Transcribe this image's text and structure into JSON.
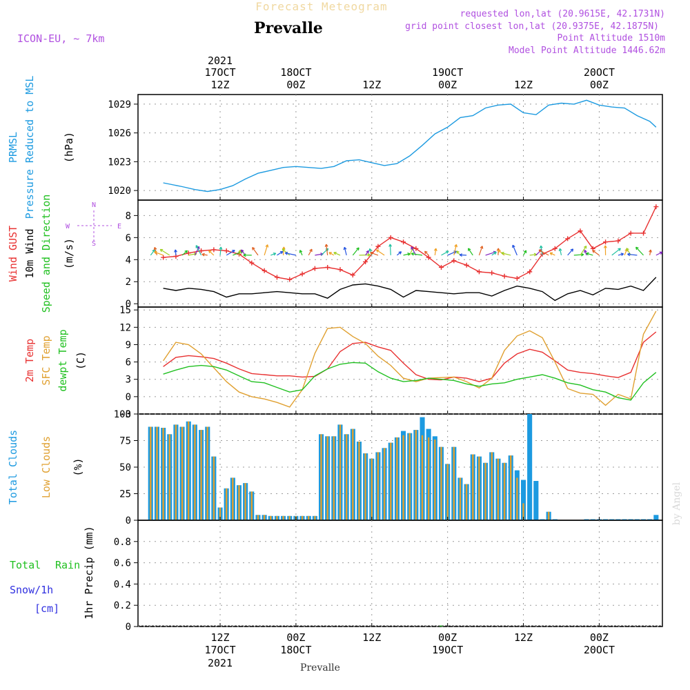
{
  "header": {
    "forecast_title": "Forecast Meteogram",
    "place": "Prevalle",
    "model": "ICON-EU, ~ 7km",
    "requested": "requested lon,lat (20.9615E, 42.1731N)",
    "grid_point": "grid point closest lon,lat (20.9375E, 42.1875N)",
    "point_altitude": "Point Altitude 1510m",
    "model_altitude": "Model Point Altitude 1446.62m"
  },
  "footer": {
    "place": "Prevalle",
    "watermark": "by Angel"
  },
  "time_axis": {
    "top_year": "2021",
    "ticks": [
      {
        "hour": 12,
        "l1": "17OCT",
        "l2": "12Z"
      },
      {
        "hour": 24,
        "l1": "18OCT",
        "l2": "00Z"
      },
      {
        "hour": 36,
        "l1": "",
        "l2": "12Z"
      },
      {
        "hour": 48,
        "l1": "19OCT",
        "l2": "00Z"
      },
      {
        "hour": 60,
        "l1": "",
        "l2": "12Z"
      },
      {
        "hour": 72,
        "l1": "20OCT",
        "l2": "00Z"
      }
    ],
    "bottom": [
      {
        "hour": 12,
        "l1": "12Z",
        "l2": "17OCT",
        "l3": "2021"
      },
      {
        "hour": 24,
        "l1": "00Z",
        "l2": "18OCT",
        "l3": ""
      },
      {
        "hour": 36,
        "l1": "12Z",
        "l2": "",
        "l3": ""
      },
      {
        "hour": 48,
        "l1": "00Z",
        "l2": "19OCT",
        "l3": ""
      },
      {
        "hour": 60,
        "l1": "12Z",
        "l2": "",
        "l3": ""
      },
      {
        "hour": 72,
        "l1": "00Z",
        "l2": "20OCT",
        "l3": ""
      }
    ]
  },
  "panels": {
    "pressure": {
      "labels": [
        {
          "text": "PRMSL",
          "color": "#1c9ae0"
        },
        {
          "text": "Pressure Reduced to MSL",
          "color": "#1c9ae0"
        },
        {
          "text": "(hPa)",
          "color": "#000000"
        }
      ],
      "ticks": [
        "1020",
        "1023",
        "1026",
        "1029"
      ]
    },
    "wind": {
      "labels": [
        {
          "text": "Wind GUST",
          "color": "#e83030"
        },
        {
          "text": "10m Wind",
          "color": "#000000"
        },
        {
          "text": "Speed and Direction",
          "color": "#20c020"
        },
        {
          "text": "(m/s)",
          "color": "#000000"
        }
      ],
      "compass": {
        "n": "N",
        "s": "S",
        "w": "W",
        "e": "E",
        "color": "#b050e0"
      },
      "ticks": [
        "0",
        "2",
        "4",
        "6",
        "8"
      ]
    },
    "temp": {
      "labels": [
        {
          "text": "2m Temp",
          "color": "#e83030"
        },
        {
          "text": "SFC Temp",
          "color": "#e0a030"
        },
        {
          "text": "dewpt Temp",
          "color": "#20c020"
        },
        {
          "text": "(C)",
          "color": "#000000"
        }
      ],
      "ticks": [
        "-3",
        "0",
        "3",
        "6",
        "9",
        "12",
        "15"
      ]
    },
    "clouds": {
      "labels": [
        {
          "text": "Total Clouds",
          "color": "#1c9ae0"
        },
        {
          "text": "Low Clouds",
          "color": "#e0a030"
        },
        {
          "text": "(%)",
          "color": "#000000"
        }
      ],
      "ticks": [
        "0",
        "25",
        "50",
        "75",
        "100"
      ]
    },
    "precip": {
      "labels": [
        {
          "text": "Total",
          "color": "#20c020"
        },
        {
          "text": "Rain",
          "color": "#20c020"
        },
        {
          "text": "Snow/1h",
          "color": "#3030e0"
        },
        {
          "text": "[cm]",
          "color": "#3030e0"
        },
        {
          "text": "1hr Precip (mm)",
          "color": "#000000"
        }
      ],
      "ticks": [
        "0",
        "0.2",
        "0.4",
        "0.6",
        "0.8"
      ]
    }
  },
  "chart_data": [
    {
      "type": "line",
      "title": "PRMSL Pressure Reduced to MSL",
      "ylabel": "(hPa)",
      "ylim": [
        1019,
        1030
      ],
      "grid": true,
      "color": "#1c9ae0",
      "x_hours": [
        3,
        6,
        8,
        10,
        12,
        14,
        16,
        18,
        20,
        22,
        24,
        26,
        28,
        30,
        32,
        34,
        36,
        38,
        40,
        42,
        44,
        46,
        48,
        50,
        52,
        54,
        56,
        58,
        60,
        62,
        64,
        66,
        68,
        70,
        72,
        74,
        76,
        78,
        80,
        81
      ],
      "values": [
        1020.8,
        1020.4,
        1020.1,
        1019.9,
        1020.1,
        1020.5,
        1021.2,
        1021.8,
        1022.1,
        1022.4,
        1022.5,
        1022.4,
        1022.3,
        1022.5,
        1023.1,
        1023.2,
        1022.9,
        1022.6,
        1022.8,
        1023.6,
        1024.7,
        1025.9,
        1026.6,
        1027.6,
        1027.8,
        1028.6,
        1028.9,
        1029.0,
        1028.1,
        1027.9,
        1028.9,
        1029.1,
        1029.0,
        1029.4,
        1028.9,
        1028.7,
        1028.6,
        1027.8,
        1027.2,
        1026.6
      ]
    },
    {
      "type": "line",
      "title": "Wind GUST / 10m Wind Speed and Direction",
      "ylabel": "(m/s)",
      "ylim": [
        -0.3,
        9.4
      ],
      "grid": true,
      "x_hours": [
        3,
        5,
        7,
        9,
        11,
        13,
        15,
        17,
        19,
        21,
        23,
        25,
        27,
        29,
        31,
        33,
        35,
        37,
        39,
        41,
        43,
        45,
        47,
        49,
        51,
        53,
        55,
        57,
        59,
        61,
        63,
        65,
        67,
        69,
        71,
        73,
        75,
        77,
        79,
        81
      ],
      "series": [
        {
          "name": "Wind GUST",
          "color": "#e83030",
          "values": [
            4.2,
            4.3,
            4.6,
            4.8,
            4.9,
            4.8,
            4.5,
            3.7,
            3.0,
            2.4,
            2.2,
            2.7,
            3.2,
            3.3,
            3.1,
            2.6,
            3.8,
            5.2,
            6.0,
            5.6,
            5.0,
            4.2,
            3.3,
            3.9,
            3.5,
            2.9,
            2.8,
            2.5,
            2.3,
            2.9,
            4.5,
            5.0,
            5.9,
            6.6,
            5.0,
            5.6,
            5.7,
            6.4,
            6.4,
            8.8
          ]
        },
        {
          "name": "10m Wind",
          "color": "#000000",
          "values": [
            1.4,
            1.2,
            1.4,
            1.3,
            1.1,
            0.6,
            0.9,
            0.9,
            1.0,
            1.1,
            1.0,
            0.9,
            0.9,
            0.5,
            1.3,
            1.7,
            1.8,
            1.6,
            1.3,
            0.6,
            1.2,
            1.1,
            1.0,
            0.9,
            1.0,
            1.0,
            0.7,
            1.2,
            1.6,
            1.4,
            1.1,
            0.3,
            0.9,
            1.2,
            0.8,
            1.4,
            1.3,
            1.6,
            1.2,
            2.4
          ]
        }
      ]
    },
    {
      "type": "line",
      "title": "2m Temp / SFC Temp / dewpt Temp",
      "ylabel": "(C)",
      "ylim": [
        -3,
        15.5
      ],
      "grid": true,
      "x_hours": [
        3,
        5,
        7,
        9,
        11,
        13,
        15,
        17,
        19,
        21,
        23,
        25,
        27,
        29,
        31,
        33,
        35,
        37,
        39,
        41,
        43,
        45,
        47,
        49,
        51,
        53,
        55,
        57,
        59,
        61,
        63,
        65,
        67,
        69,
        71,
        73,
        75,
        77,
        79,
        81
      ],
      "series": [
        {
          "name": "2m Temp",
          "color": "#e83030",
          "values": [
            5.2,
            6.8,
            7.1,
            6.9,
            6.6,
            5.8,
            4.8,
            4.0,
            3.8,
            3.6,
            3.6,
            3.4,
            3.5,
            4.8,
            7.8,
            9.2,
            9.4,
            8.6,
            8.0,
            5.8,
            3.8,
            3.0,
            2.9,
            3.4,
            3.2,
            2.6,
            3.2,
            5.8,
            7.4,
            8.2,
            7.7,
            6.2,
            4.6,
            4.2,
            4.0,
            3.6,
            3.3,
            4.2,
            9.4,
            11.2
          ]
        },
        {
          "name": "SFC Temp",
          "color": "#e0a030",
          "values": [
            6.2,
            9.4,
            9.0,
            7.4,
            5.0,
            2.6,
            0.8,
            0.0,
            -0.4,
            -1.0,
            -1.8,
            1.2,
            7.5,
            11.8,
            12.0,
            10.4,
            9.2,
            7.0,
            5.4,
            3.2,
            2.6,
            3.2,
            3.3,
            3.4,
            2.6,
            1.5,
            3.2,
            8.0,
            10.5,
            11.4,
            10.2,
            6.0,
            1.4,
            0.6,
            0.4,
            -1.5,
            0.4,
            -0.4,
            10.8,
            14.8
          ]
        },
        {
          "name": "dewpt Temp",
          "color": "#20c020",
          "values": [
            3.9,
            4.6,
            5.2,
            5.4,
            5.2,
            4.6,
            3.6,
            2.6,
            2.4,
            1.6,
            0.8,
            1.2,
            3.6,
            4.8,
            5.6,
            5.9,
            5.8,
            4.3,
            3.2,
            2.6,
            2.8,
            3.2,
            3.0,
            2.8,
            2.2,
            1.8,
            2.2,
            2.4,
            3.0,
            3.4,
            3.8,
            3.2,
            2.4,
            2.0,
            1.2,
            0.8,
            -0.2,
            -0.6,
            2.4,
            4.2
          ]
        }
      ]
    },
    {
      "type": "bar",
      "title": "Total Clouds / Low Clouds",
      "ylabel": "(%)",
      "ylim": [
        0,
        100
      ],
      "grid": true,
      "x_hours": [
        1,
        2,
        3,
        4,
        5,
        6,
        7,
        8,
        9,
        10,
        11,
        12,
        13,
        14,
        15,
        16,
        17,
        18,
        19,
        20,
        21,
        22,
        23,
        24,
        25,
        26,
        27,
        28,
        29,
        30,
        31,
        32,
        33,
        34,
        35,
        36,
        37,
        38,
        39,
        40,
        41,
        42,
        43,
        44,
        45,
        46,
        47,
        48,
        49,
        50,
        51,
        52,
        53,
        54,
        55,
        56,
        57,
        58,
        59,
        60,
        61,
        62,
        63,
        64,
        65,
        66,
        67,
        68,
        69,
        70,
        71,
        72,
        73,
        74,
        75,
        76,
        77,
        78,
        79,
        80,
        81
      ],
      "series": [
        {
          "name": "Total Clouds",
          "color": "#1c9ae0",
          "values": [
            88,
            88,
            87,
            81,
            90,
            88,
            93,
            90,
            85,
            88,
            60,
            12,
            30,
            40,
            33,
            35,
            27,
            5,
            5,
            4,
            4,
            4,
            4,
            4,
            4,
            4,
            4,
            81,
            79,
            79,
            90,
            81,
            86,
            74,
            63,
            58,
            64,
            68,
            73,
            78,
            84,
            82,
            85,
            97,
            86,
            79,
            69,
            53,
            69,
            40,
            34,
            62,
            60,
            54,
            64,
            58,
            54,
            61,
            47,
            38,
            100,
            37,
            1,
            8,
            1,
            0,
            0,
            0,
            0,
            1,
            1,
            1,
            1,
            1,
            1,
            1,
            1,
            1,
            1,
            1,
            5
          ]
        },
        {
          "name": "Low Clouds",
          "color": "#e0a030",
          "values": [
            88,
            88,
            87,
            81,
            90,
            88,
            93,
            90,
            85,
            88,
            60,
            12,
            30,
            40,
            33,
            35,
            27,
            5,
            5,
            4,
            4,
            4,
            4,
            4,
            4,
            4,
            4,
            81,
            79,
            79,
            90,
            81,
            86,
            74,
            63,
            58,
            64,
            68,
            73,
            78,
            80,
            82,
            85,
            80,
            78,
            76,
            69,
            53,
            69,
            40,
            34,
            62,
            60,
            54,
            64,
            58,
            54,
            61,
            40,
            16,
            0,
            0,
            0,
            8,
            0,
            0,
            0,
            0,
            0,
            0,
            0,
            0,
            0,
            0,
            0,
            0,
            0,
            0,
            0,
            0,
            0
          ]
        }
      ]
    },
    {
      "type": "bar",
      "title": "Total Rain Snow/1h",
      "ylabel": "1hr Precip (mm)",
      "ylim": [
        0,
        1.0
      ],
      "grid": true,
      "x_hours": [
        47
      ],
      "series": [
        {
          "name": "Total Rain",
          "color": "#20c020",
          "values": [
            0.01
          ]
        }
      ]
    }
  ]
}
